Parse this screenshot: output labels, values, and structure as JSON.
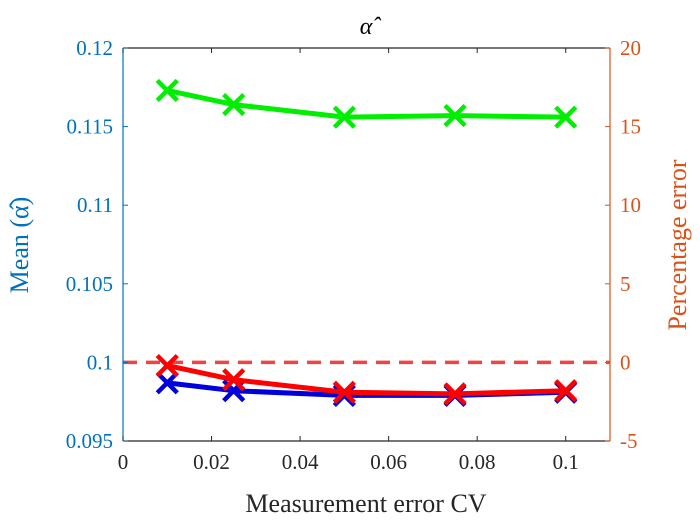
{
  "chart_data": {
    "type": "line",
    "title": "α̂",
    "xlabel": "Measurement error CV",
    "ylabel_left": "Mean (α̂)",
    "ylabel_right": "Percentage error",
    "xlim": [
      0,
      0.11
    ],
    "ylim_left": [
      0.095,
      0.12
    ],
    "ylim_right": [
      -5,
      20
    ],
    "xticks": [
      "0",
      "0.02",
      "0.04",
      "0.06",
      "0.08",
      "0.1"
    ],
    "yticks_left": [
      "0.095",
      "0.1",
      "0.105",
      "0.11",
      "0.115",
      "0.12"
    ],
    "yticks_right": [
      "-5",
      "0",
      "5",
      "10",
      "15",
      "20"
    ],
    "x": [
      0.01,
      0.025,
      0.05,
      0.075,
      0.1
    ],
    "series": [
      {
        "axis": "left",
        "color": "#00ee00",
        "marker": "x",
        "values": [
          0.1173,
          0.1164,
          0.1156,
          0.1157,
          0.1156
        ]
      },
      {
        "axis": "left",
        "color": "#0000dd",
        "marker": "x",
        "values": [
          0.0987,
          0.0982,
          0.0979,
          0.0979,
          0.0981
        ]
      },
      {
        "axis": "right",
        "color": "#ff0000",
        "marker": "x",
        "values": [
          -0.2,
          -1.1,
          -1.9,
          -2.0,
          -1.8
        ]
      }
    ],
    "reference_line": {
      "axis": "right",
      "value": 0,
      "color": "#ee4444",
      "style": "dashed"
    },
    "colors": {
      "left_axis": "#0072BD",
      "right_axis": "#D95319"
    },
    "grid": false,
    "legend": "none"
  }
}
